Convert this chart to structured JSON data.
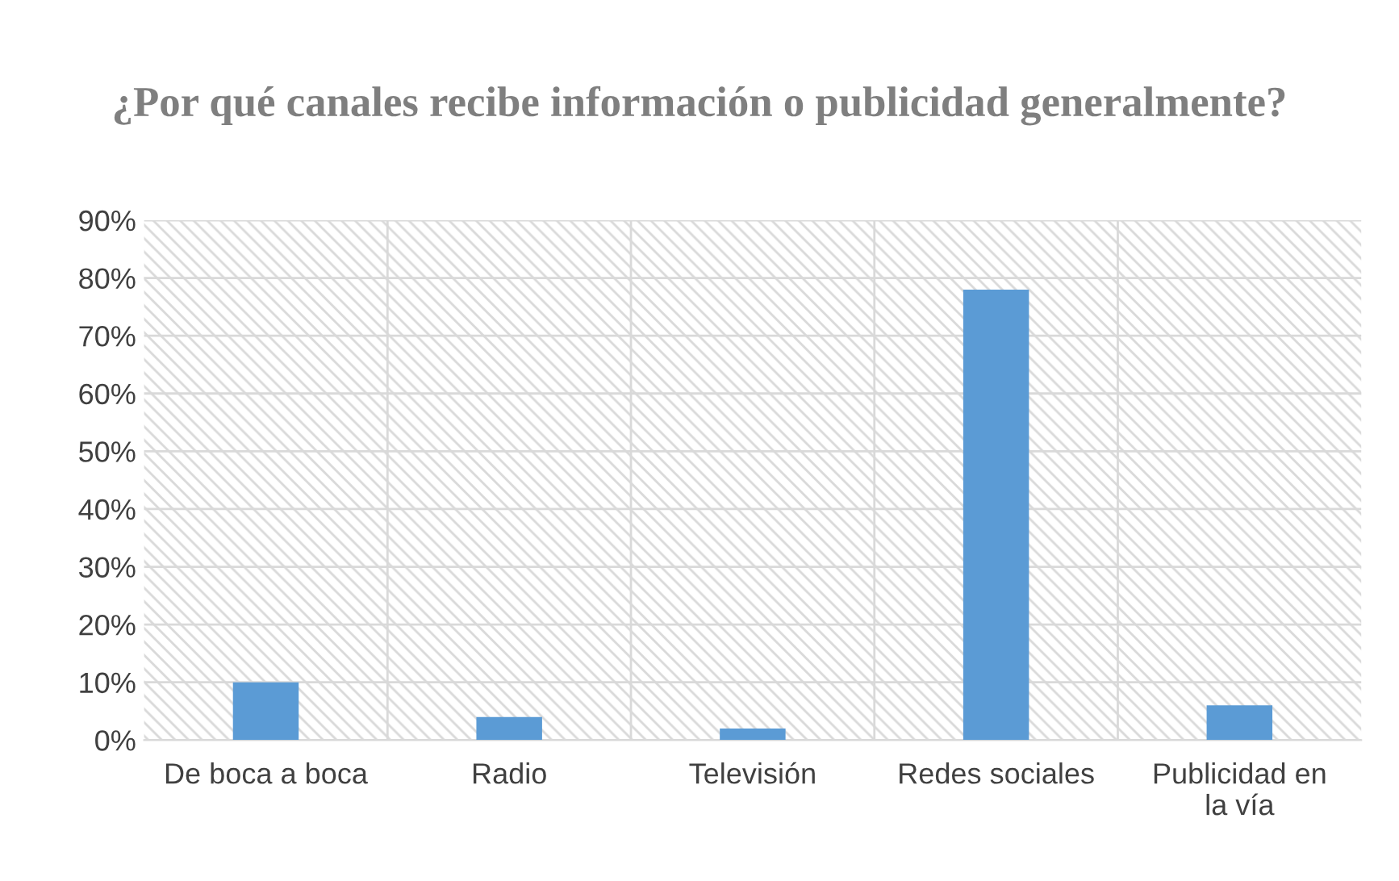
{
  "chart_data": {
    "type": "bar",
    "title": "¿Por qué canales recibe información o publicidad generalmente?",
    "categories": [
      "De boca a boca",
      "Radio",
      "Televisión",
      "Redes sociales",
      "Publicidad en\nla vía"
    ],
    "values": [
      10,
      4,
      2,
      78,
      6
    ],
    "color": "#5b9bd5",
    "ylim": [
      0,
      90
    ],
    "yticks": [
      {
        "value": 0,
        "label": "0%"
      },
      {
        "value": 10,
        "label": "10%"
      },
      {
        "value": 20,
        "label": "20%"
      },
      {
        "value": 30,
        "label": "30%"
      },
      {
        "value": 40,
        "label": "40%"
      },
      {
        "value": 50,
        "label": "50%"
      },
      {
        "value": 60,
        "label": "60%"
      },
      {
        "value": 70,
        "label": "70%"
      },
      {
        "value": 80,
        "label": "80%"
      },
      {
        "value": 90,
        "label": "90%"
      }
    ],
    "grid": true
  }
}
